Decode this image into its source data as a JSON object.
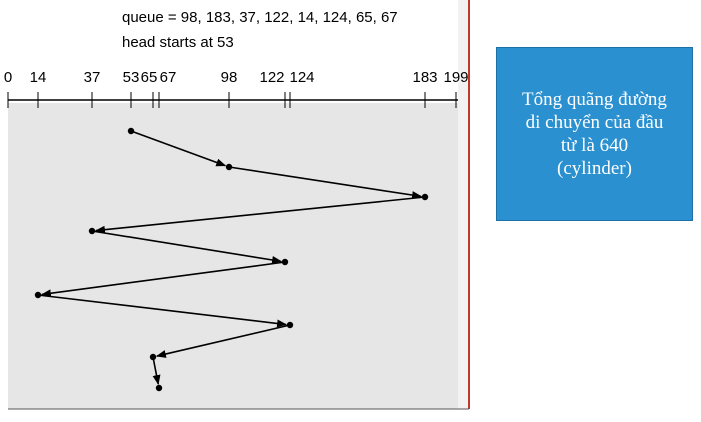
{
  "figure": {
    "queue_label": "queue = 98, 183, 37, 122, 14, 124, 65, 67",
    "head_label": "head starts at 53",
    "ticks": [
      "0",
      "14",
      "37",
      "53",
      "65",
      "67",
      "98",
      "122",
      "124",
      "183",
      "199"
    ],
    "path": [
      53,
      98,
      183,
      37,
      122,
      14,
      124,
      65,
      67
    ],
    "colors": {
      "plot_background": "#e6e6e6",
      "right_border": "#c0392b",
      "line": "#000000"
    }
  },
  "callout": {
    "lines": [
      "Tổng quãng đường",
      "di chuyển của đầu",
      "từ là 640",
      "(cylinder)"
    ],
    "background": "#2a90d0"
  }
}
